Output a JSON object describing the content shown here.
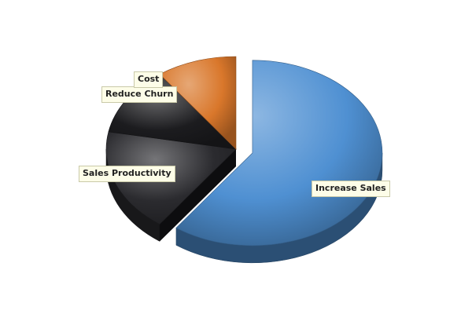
{
  "chart_data": {
    "type": "pie",
    "title": "",
    "three_d": true,
    "exploded": "Increase Sales",
    "legend": "none",
    "slices": [
      {
        "label": "Increase Sales",
        "value": 60,
        "color": "#4f90d2"
      },
      {
        "label": "Sales Productivity",
        "value": 18,
        "color": "#2b2b2f"
      },
      {
        "label": "Reduce Churn",
        "value": 12,
        "color": "#1c1c1f"
      },
      {
        "label": "Cost",
        "value": 10,
        "color": "#d9772b"
      }
    ]
  }
}
